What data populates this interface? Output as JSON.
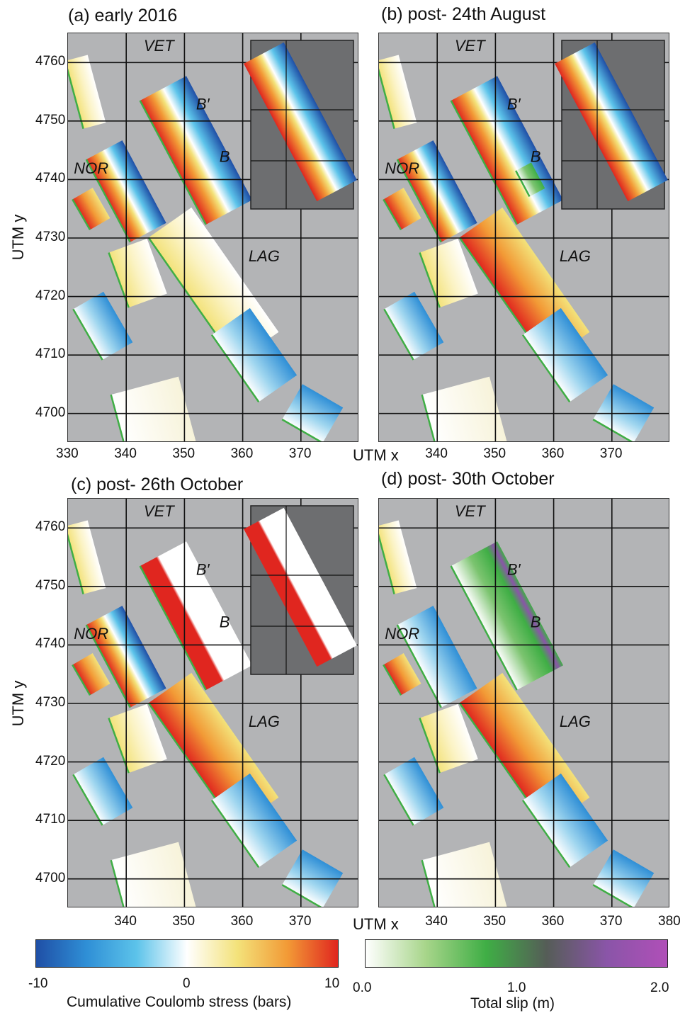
{
  "panels": [
    {
      "id": "a",
      "title": "(a) early 2016",
      "inset": true
    },
    {
      "id": "b",
      "title": "(b) post- 24th August",
      "inset": true
    },
    {
      "id": "c",
      "title": "(c) post- 26th October",
      "inset": true
    },
    {
      "id": "d",
      "title": "(d) post- 30th October",
      "inset": false
    }
  ],
  "fault_labels": [
    "VET",
    "B′",
    "B",
    "NOR",
    "LAG"
  ],
  "axes": {
    "ylabel": "UTM y",
    "xlabel": "UTM x",
    "yticks": [
      "4700",
      "4710",
      "4720",
      "4730",
      "4740",
      "4750",
      "4760"
    ],
    "xticks_a": [
      "330",
      "340",
      "350",
      "360",
      "370"
    ],
    "xticks_b": [
      "340",
      "350",
      "360",
      "370"
    ],
    "xticks_c": [
      "340",
      "350",
      "360",
      "370"
    ],
    "xticks_d": [
      "340",
      "350",
      "360",
      "370",
      "380"
    ]
  },
  "colorbars": {
    "stress": {
      "title": "Cumulative Coulomb stress (bars)",
      "ticks": [
        "-10",
        "0",
        "10"
      ],
      "colors": [
        "#1f4fa6",
        "#2f8fd6",
        "#5cc3ea",
        "#ffffff",
        "#f3e27a",
        "#f29a36",
        "#e0261f"
      ]
    },
    "slip": {
      "title": "Total slip (m)",
      "ticks": [
        "0.0",
        "1.0",
        "2.0"
      ],
      "colors": [
        "#ffffff",
        "#a7d58a",
        "#3fae45",
        "#555d57",
        "#8a55a8",
        "#b04fb8"
      ]
    }
  },
  "colors": {
    "background": "#b3b4b6",
    "inset_background": "#6d6e70",
    "fault_trace": "#3fae45",
    "positive_stress": "#e0261f",
    "negative_stress": "#1f4fa6",
    "slip_green": "#3fae45",
    "slip_purple": "#8a55a8"
  },
  "chart_data": [
    {
      "type": "heatmap",
      "title": "(a) early 2016",
      "xlabel": "UTM x",
      "ylabel": "UTM y",
      "xlim": [
        330,
        380
      ],
      "ylim": [
        4695,
        4765
      ],
      "grid": true,
      "colorbar": "Cumulative Coulomb stress (bars)",
      "crange": [
        -10,
        10
      ]
    },
    {
      "type": "heatmap",
      "title": "(b) post- 24th August",
      "xlabel": "UTM x",
      "ylabel": "UTM y",
      "xlim": [
        330,
        380
      ],
      "ylim": [
        4695,
        4765
      ],
      "grid": true,
      "colorbar": "Cumulative Coulomb stress (bars)",
      "crange": [
        -10,
        10
      ]
    },
    {
      "type": "heatmap",
      "title": "(c) post- 26th October",
      "xlabel": "UTM x",
      "ylabel": "UTM y",
      "xlim": [
        330,
        380
      ],
      "ylim": [
        4695,
        4765
      ],
      "grid": true,
      "colorbar": "Cumulative Coulomb stress (bars)",
      "crange": [
        -10,
        10
      ]
    },
    {
      "type": "heatmap",
      "title": "(d) post- 30th October",
      "xlabel": "UTM x",
      "ylabel": "UTM y",
      "xlim": [
        330,
        380
      ],
      "ylim": [
        4695,
        4765
      ],
      "grid": true,
      "colorbar": "Total slip (m)",
      "crange": [
        0,
        2
      ]
    }
  ]
}
